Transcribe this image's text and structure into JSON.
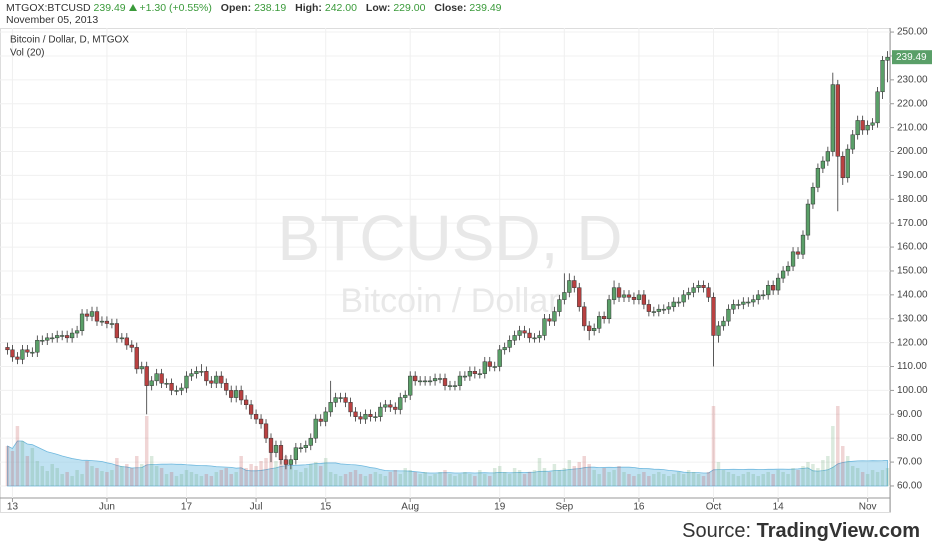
{
  "header": {
    "symbol": "MTGOX:BTCUSD",
    "last": "239.49",
    "change": "+1.30 (+0.55%)",
    "open_label": "Open:",
    "open": "238.19",
    "high_label": "High:",
    "high": "242.00",
    "low_label": "Low:",
    "low": "229.00",
    "close_label": "Close:",
    "close": "239.49",
    "date": "November 05, 2013"
  },
  "chart_data": {
    "type": "candlestick",
    "title": "Bitcoin / Dollar, D, MTGOX",
    "watermark": "BTCUSD, D",
    "watermark_subtitle": "Bitcoin / Dollar",
    "volume_label": "Vol (20)",
    "categories": [
      null,
      "13",
      null,
      null,
      null,
      null,
      null,
      null,
      null,
      null,
      null,
      null,
      null,
      null,
      null,
      null,
      null,
      null,
      null,
      null,
      "Jun",
      null,
      null,
      null,
      null,
      null,
      null,
      null,
      null,
      null,
      null,
      null,
      null,
      null,
      null,
      null,
      "17",
      null,
      null,
      null,
      null,
      null,
      null,
      null,
      null,
      null,
      null,
      null,
      null,
      null,
      "Jul",
      null,
      null,
      null,
      null,
      null,
      null,
      null,
      null,
      null,
      null,
      null,
      null,
      null,
      "15",
      null,
      null,
      null,
      null,
      null,
      null,
      null,
      null,
      null,
      null,
      null,
      null,
      null,
      null,
      null,
      null,
      "Aug",
      null,
      null,
      null,
      null,
      null,
      null,
      null,
      null,
      null,
      null,
      null,
      null,
      null,
      null,
      null,
      null,
      null,
      "19",
      null,
      null,
      null,
      null,
      null,
      null,
      null,
      null,
      null,
      null,
      null,
      null,
      "Sep",
      null,
      null,
      null,
      null,
      null,
      null,
      null,
      null,
      null,
      null,
      null,
      null,
      null,
      null,
      "16",
      null,
      null,
      null,
      null,
      null,
      null,
      null,
      null,
      null,
      null,
      null,
      null,
      null,
      null,
      "Oct",
      null,
      null,
      null,
      null,
      null,
      null,
      null,
      null,
      null,
      null,
      null,
      null,
      "14",
      null,
      null,
      null,
      null,
      null,
      null,
      null,
      null,
      null,
      null,
      null,
      null,
      null,
      null,
      null,
      null,
      null,
      "Nov",
      null,
      null,
      null,
      null
    ],
    "open": [
      118,
      117,
      114,
      113,
      117,
      116,
      116,
      121,
      121,
      122,
      122,
      123,
      123,
      122,
      124,
      125,
      132,
      131,
      133,
      129,
      129,
      128,
      128,
      122,
      122,
      119,
      118,
      109,
      110,
      102,
      104,
      107,
      103,
      103,
      100,
      100,
      101,
      106,
      107,
      108,
      108,
      104,
      103,
      106,
      103,
      100,
      97,
      100,
      96,
      94,
      90,
      88,
      86,
      80,
      74,
      77,
      71,
      69,
      71,
      76,
      76,
      77,
      80,
      88,
      87,
      91,
      95,
      97,
      97,
      95,
      91,
      89,
      88,
      90,
      89,
      89,
      93,
      94,
      93,
      92,
      97,
      98,
      106,
      104,
      104,
      104,
      104,
      105,
      105,
      102,
      102,
      102,
      106,
      106,
      108,
      107,
      107,
      112,
      110,
      110,
      117,
      118,
      121,
      123,
      125,
      124,
      122,
      122,
      123,
      130,
      129,
      133,
      138,
      141,
      146,
      143,
      135,
      127,
      125,
      126,
      131,
      130,
      138,
      143,
      139,
      140,
      139,
      138,
      140,
      136,
      133,
      133,
      134,
      134,
      135,
      137,
      137,
      140,
      141,
      143,
      144,
      143,
      139,
      123,
      127,
      129,
      134,
      136,
      136,
      137,
      137,
      138,
      140,
      140,
      144,
      142,
      147,
      150,
      152,
      158,
      157,
      165,
      178,
      185,
      193,
      196,
      200,
      228,
      198,
      189,
      201,
      207,
      213,
      209,
      211,
      212,
      225,
      238.19
    ],
    "high": [
      120,
      119,
      116,
      119,
      119,
      118,
      123,
      123,
      124,
      124,
      125,
      125,
      125,
      126,
      127,
      134,
      134,
      135,
      135,
      131,
      131,
      130,
      130,
      124,
      124,
      121,
      120,
      112,
      112,
      106,
      109,
      109,
      105,
      105,
      102,
      103,
      108,
      109,
      110,
      111,
      110,
      106,
      108,
      108,
      105,
      102,
      102,
      102,
      98,
      96,
      92,
      90,
      88,
      82,
      79,
      79,
      73,
      73,
      78,
      78,
      79,
      82,
      90,
      90,
      93,
      104,
      99,
      99,
      99,
      97,
      93,
      91,
      92,
      92,
      91,
      95,
      96,
      96,
      95,
      99,
      100,
      108,
      108,
      106,
      106,
      106,
      107,
      107,
      107,
      104,
      104,
      108,
      108,
      110,
      110,
      109,
      114,
      114,
      112,
      119,
      120,
      123,
      125,
      127,
      127,
      126,
      124,
      125,
      132,
      132,
      135,
      140,
      149,
      149,
      148,
      145,
      137,
      129,
      128,
      133,
      133,
      140,
      146,
      145,
      142,
      142,
      141,
      142,
      142,
      138,
      135,
      136,
      136,
      137,
      139,
      139,
      142,
      143,
      145,
      146,
      146,
      145,
      141,
      129,
      131,
      136,
      138,
      138,
      139,
      139,
      140,
      142,
      142,
      146,
      146,
      149,
      152,
      154,
      160,
      160,
      167,
      180,
      187,
      195,
      198,
      202,
      233,
      230,
      200,
      203,
      209,
      215,
      215,
      213,
      214,
      227,
      240,
      242
    ],
    "low": [
      115,
      112,
      111,
      111,
      114,
      114,
      114,
      119,
      119,
      120,
      120,
      121,
      120,
      120,
      122,
      123,
      129,
      129,
      127,
      127,
      126,
      126,
      120,
      120,
      117,
      116,
      107,
      107,
      90,
      100,
      102,
      101,
      101,
      98,
      98,
      98,
      99,
      104,
      105,
      106,
      102,
      101,
      101,
      101,
      98,
      95,
      95,
      94,
      92,
      88,
      86,
      84,
      78,
      70,
      72,
      69,
      67,
      67,
      69,
      74,
      74,
      75,
      78,
      85,
      85,
      89,
      93,
      95,
      93,
      89,
      87,
      86,
      86,
      87,
      87,
      87,
      91,
      91,
      90,
      90,
      95,
      96,
      102,
      102,
      102,
      102,
      102,
      103,
      100,
      100,
      100,
      100,
      104,
      104,
      105,
      105,
      105,
      108,
      108,
      108,
      115,
      116,
      119,
      121,
      122,
      120,
      120,
      120,
      121,
      127,
      127,
      131,
      136,
      139,
      141,
      133,
      125,
      121,
      123,
      124,
      128,
      128,
      136,
      137,
      137,
      137,
      136,
      136,
      134,
      131,
      131,
      131,
      132,
      132,
      133,
      135,
      135,
      138,
      139,
      141,
      141,
      137,
      110,
      120,
      125,
      127,
      132,
      134,
      134,
      135,
      135,
      136,
      138,
      138,
      140,
      140,
      145,
      148,
      150,
      155,
      155,
      163,
      176,
      183,
      191,
      194,
      198,
      175,
      186,
      187,
      199,
      205,
      207,
      207,
      209,
      210,
      222,
      229
    ],
    "close": [
      117,
      114,
      113,
      117,
      116,
      116,
      121,
      121,
      122,
      122,
      123,
      123,
      122,
      124,
      125,
      132,
      131,
      133,
      129,
      129,
      128,
      128,
      122,
      122,
      119,
      118,
      109,
      110,
      102,
      104,
      107,
      103,
      103,
      100,
      100,
      101,
      106,
      107,
      108,
      108,
      104,
      103,
      106,
      103,
      100,
      97,
      100,
      96,
      94,
      90,
      88,
      86,
      80,
      74,
      77,
      71,
      69,
      71,
      76,
      76,
      77,
      80,
      88,
      87,
      91,
      95,
      97,
      97,
      95,
      91,
      89,
      88,
      90,
      89,
      89,
      93,
      94,
      93,
      92,
      97,
      98,
      106,
      104,
      104,
      104,
      104,
      105,
      105,
      102,
      102,
      102,
      106,
      106,
      108,
      107,
      107,
      112,
      110,
      110,
      117,
      118,
      121,
      123,
      125,
      124,
      122,
      122,
      123,
      130,
      129,
      133,
      138,
      141,
      146,
      143,
      135,
      127,
      125,
      126,
      131,
      130,
      138,
      143,
      139,
      140,
      139,
      138,
      140,
      136,
      133,
      133,
      134,
      134,
      135,
      137,
      137,
      140,
      141,
      143,
      144,
      143,
      139,
      123,
      127,
      129,
      134,
      136,
      136,
      137,
      137,
      138,
      140,
      140,
      144,
      142,
      147,
      150,
      152,
      158,
      157,
      165,
      178,
      185,
      193,
      196,
      200,
      228,
      198,
      189,
      201,
      207,
      213,
      209,
      211,
      212,
      225,
      238.19,
      239.49
    ],
    "volume": [
      40,
      35,
      60,
      45,
      30,
      38,
      25,
      20,
      15,
      22,
      18,
      12,
      14,
      10,
      16,
      12,
      25,
      20,
      18,
      15,
      14,
      16,
      28,
      20,
      22,
      18,
      30,
      22,
      70,
      30,
      20,
      18,
      12,
      14,
      10,
      12,
      16,
      14,
      12,
      10,
      12,
      10,
      14,
      16,
      18,
      12,
      14,
      30,
      18,
      22,
      20,
      25,
      28,
      35,
      25,
      40,
      30,
      20,
      16,
      14,
      18,
      22,
      24,
      20,
      28,
      14,
      12,
      10,
      12,
      14,
      16,
      12,
      10,
      12,
      14,
      12,
      10,
      14,
      16,
      12,
      18,
      16,
      14,
      12,
      14,
      10,
      12,
      14,
      16,
      12,
      10,
      12,
      14,
      12,
      10,
      16,
      12,
      10,
      18,
      20,
      14,
      12,
      18,
      16,
      12,
      14,
      16,
      28,
      18,
      14,
      22,
      16,
      18,
      26,
      20,
      24,
      30,
      22,
      16,
      12,
      18,
      14,
      16,
      20,
      14,
      12,
      10,
      12,
      14,
      10,
      12,
      14,
      12,
      10,
      12,
      14,
      12,
      16,
      14,
      12,
      10,
      14,
      80,
      24,
      16,
      14,
      12,
      10,
      12,
      14,
      12,
      10,
      12,
      14,
      12,
      16,
      14,
      12,
      18,
      16,
      20,
      24,
      22,
      18,
      26,
      30,
      60,
      80,
      40,
      30,
      20,
      18,
      14,
      12,
      16,
      14,
      16,
      18
    ],
    "up_color": "#5a9f68",
    "down_color": "#b94141",
    "volume_color": "#8ccbe8",
    "ylim": [
      55.8,
      251.7
    ],
    "yticks": [
      {
        "value": 60,
        "label": "60.00"
      },
      {
        "value": 70,
        "label": "70.00"
      },
      {
        "value": 80,
        "label": "80.00"
      },
      {
        "value": 90,
        "label": "90.00"
      },
      {
        "value": 100,
        "label": "100.00"
      },
      {
        "value": 110,
        "label": "110.00"
      },
      {
        "value": 120,
        "label": "120.00"
      },
      {
        "value": 130,
        "label": "130.00"
      },
      {
        "value": 140,
        "label": "140.00"
      },
      {
        "value": 150,
        "label": "150.00"
      },
      {
        "value": 160,
        "label": "160.00"
      },
      {
        "value": 170,
        "label": "170.00"
      },
      {
        "value": 180,
        "label": "180.00"
      },
      {
        "value": 190,
        "label": "190.00"
      },
      {
        "value": 200,
        "label": "200.00"
      },
      {
        "value": 210,
        "label": "210.00"
      },
      {
        "value": 220,
        "label": "220.00"
      },
      {
        "value": 230,
        "label": "230.00"
      },
      {
        "value": 240,
        "label": "240.00"
      },
      {
        "value": 250,
        "label": "250.00"
      }
    ],
    "grid": true
  },
  "source": {
    "label": "Source:",
    "name": "TradingView.com"
  }
}
